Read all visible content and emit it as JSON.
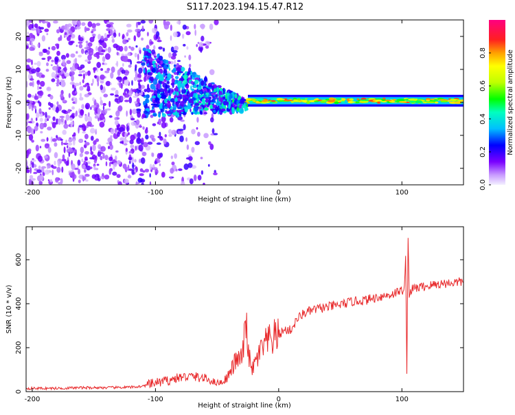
{
  "figure": {
    "title": "S117.2023.194.15.47.R12"
  },
  "colors": {
    "snr_line": "#e8282a",
    "axis": "#000000",
    "spectrogram_low": "#7a00ff",
    "spectrogram_mid": "#00ff80",
    "spectrogram_high": "#ff2020"
  },
  "chart_data": [
    {
      "type": "heatmap",
      "name": "spectrogram",
      "xlabel": "Height of straight line (km)",
      "ylabel": "Frequency (Hz)",
      "xlim": [
        -205,
        150
      ],
      "ylim": [
        -25,
        25
      ],
      "xticks": [
        -200,
        -100,
        0,
        100
      ],
      "yticks": [
        -20,
        -10,
        0,
        10,
        20
      ],
      "colorbar": {
        "label": "Normalized spectral amplitude",
        "range": [
          0.0,
          1.0
        ],
        "ticks": [
          "0.0",
          "0.2",
          "0.4",
          "0.6",
          "0.8"
        ],
        "tick_values": [
          0.0,
          0.2,
          0.4,
          0.6,
          0.8
        ],
        "colormap": "hsv (violet to red)"
      },
      "features": {
        "noise_region_x": [
          -205,
          -50
        ],
        "signal_transition_x": [
          -110,
          -25
        ],
        "stable_tone_x": [
          -25,
          150
        ],
        "stable_tone_frequency_hz": 0.5
      }
    },
    {
      "type": "line",
      "name": "snr",
      "xlabel": "Height of straight line (km)",
      "ylabel": "SNR (10 * v/v)",
      "xlim": [
        -205,
        150
      ],
      "ylim": [
        0,
        750
      ],
      "xticks": [
        -200,
        -100,
        0,
        100
      ],
      "yticks": [
        0,
        200,
        400,
        600
      ],
      "series": [
        {
          "x": [
            -205,
            -180,
            -160,
            -140,
            -120,
            -110,
            -100,
            -90,
            -80,
            -70,
            -60,
            -55,
            -50,
            -45,
            -40,
            -35,
            -30,
            -28,
            -26,
            -24,
            -22,
            -20,
            -15,
            -10,
            -5,
            0,
            5,
            10,
            12,
            15,
            20,
            25,
            30,
            40,
            50,
            60,
            70,
            80,
            90,
            95,
            100,
            102,
            103,
            104,
            105,
            106,
            107,
            110,
            120,
            130,
            140,
            150
          ],
          "y": [
            15,
            15,
            18,
            18,
            20,
            25,
            40,
            50,
            65,
            70,
            60,
            50,
            40,
            45,
            80,
            140,
            150,
            230,
            300,
            160,
            90,
            120,
            180,
            220,
            240,
            260,
            280,
            280,
            300,
            330,
            355,
            365,
            375,
            385,
            395,
            410,
            415,
            430,
            440,
            450,
            460,
            470,
            600,
            100,
            720,
            420,
            460,
            470,
            480,
            490,
            495,
            500
          ]
        }
      ]
    }
  ]
}
